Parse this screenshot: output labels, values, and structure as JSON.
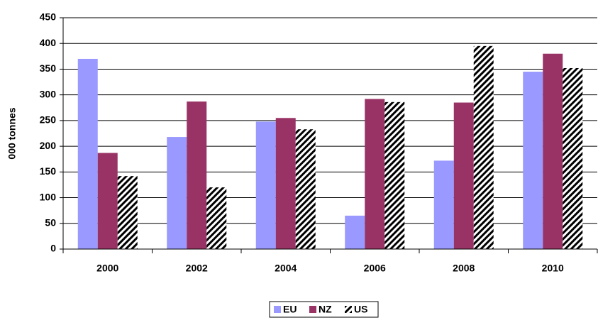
{
  "chart_data": {
    "type": "bar",
    "y_label": "000 tonnes",
    "categories": [
      "2000",
      "2002",
      "2004",
      "2006",
      "2008",
      "2010"
    ],
    "series": [
      {
        "name": "EU",
        "color": "#9999ff",
        "values": [
          370,
          218,
          248,
          65,
          172,
          345
        ]
      },
      {
        "name": "NZ",
        "color": "#993366",
        "values": [
          187,
          287,
          255,
          292,
          285,
          380
        ]
      },
      {
        "name": "US",
        "color": "#000000",
        "pattern": "hatch",
        "values": [
          142,
          120,
          233,
          286,
          395,
          352
        ]
      }
    ],
    "ylim": [
      0,
      450
    ],
    "yticks": [
      0,
      50,
      100,
      150,
      200,
      250,
      300,
      350,
      400,
      450
    ],
    "grid": true,
    "legend": "bottom"
  }
}
